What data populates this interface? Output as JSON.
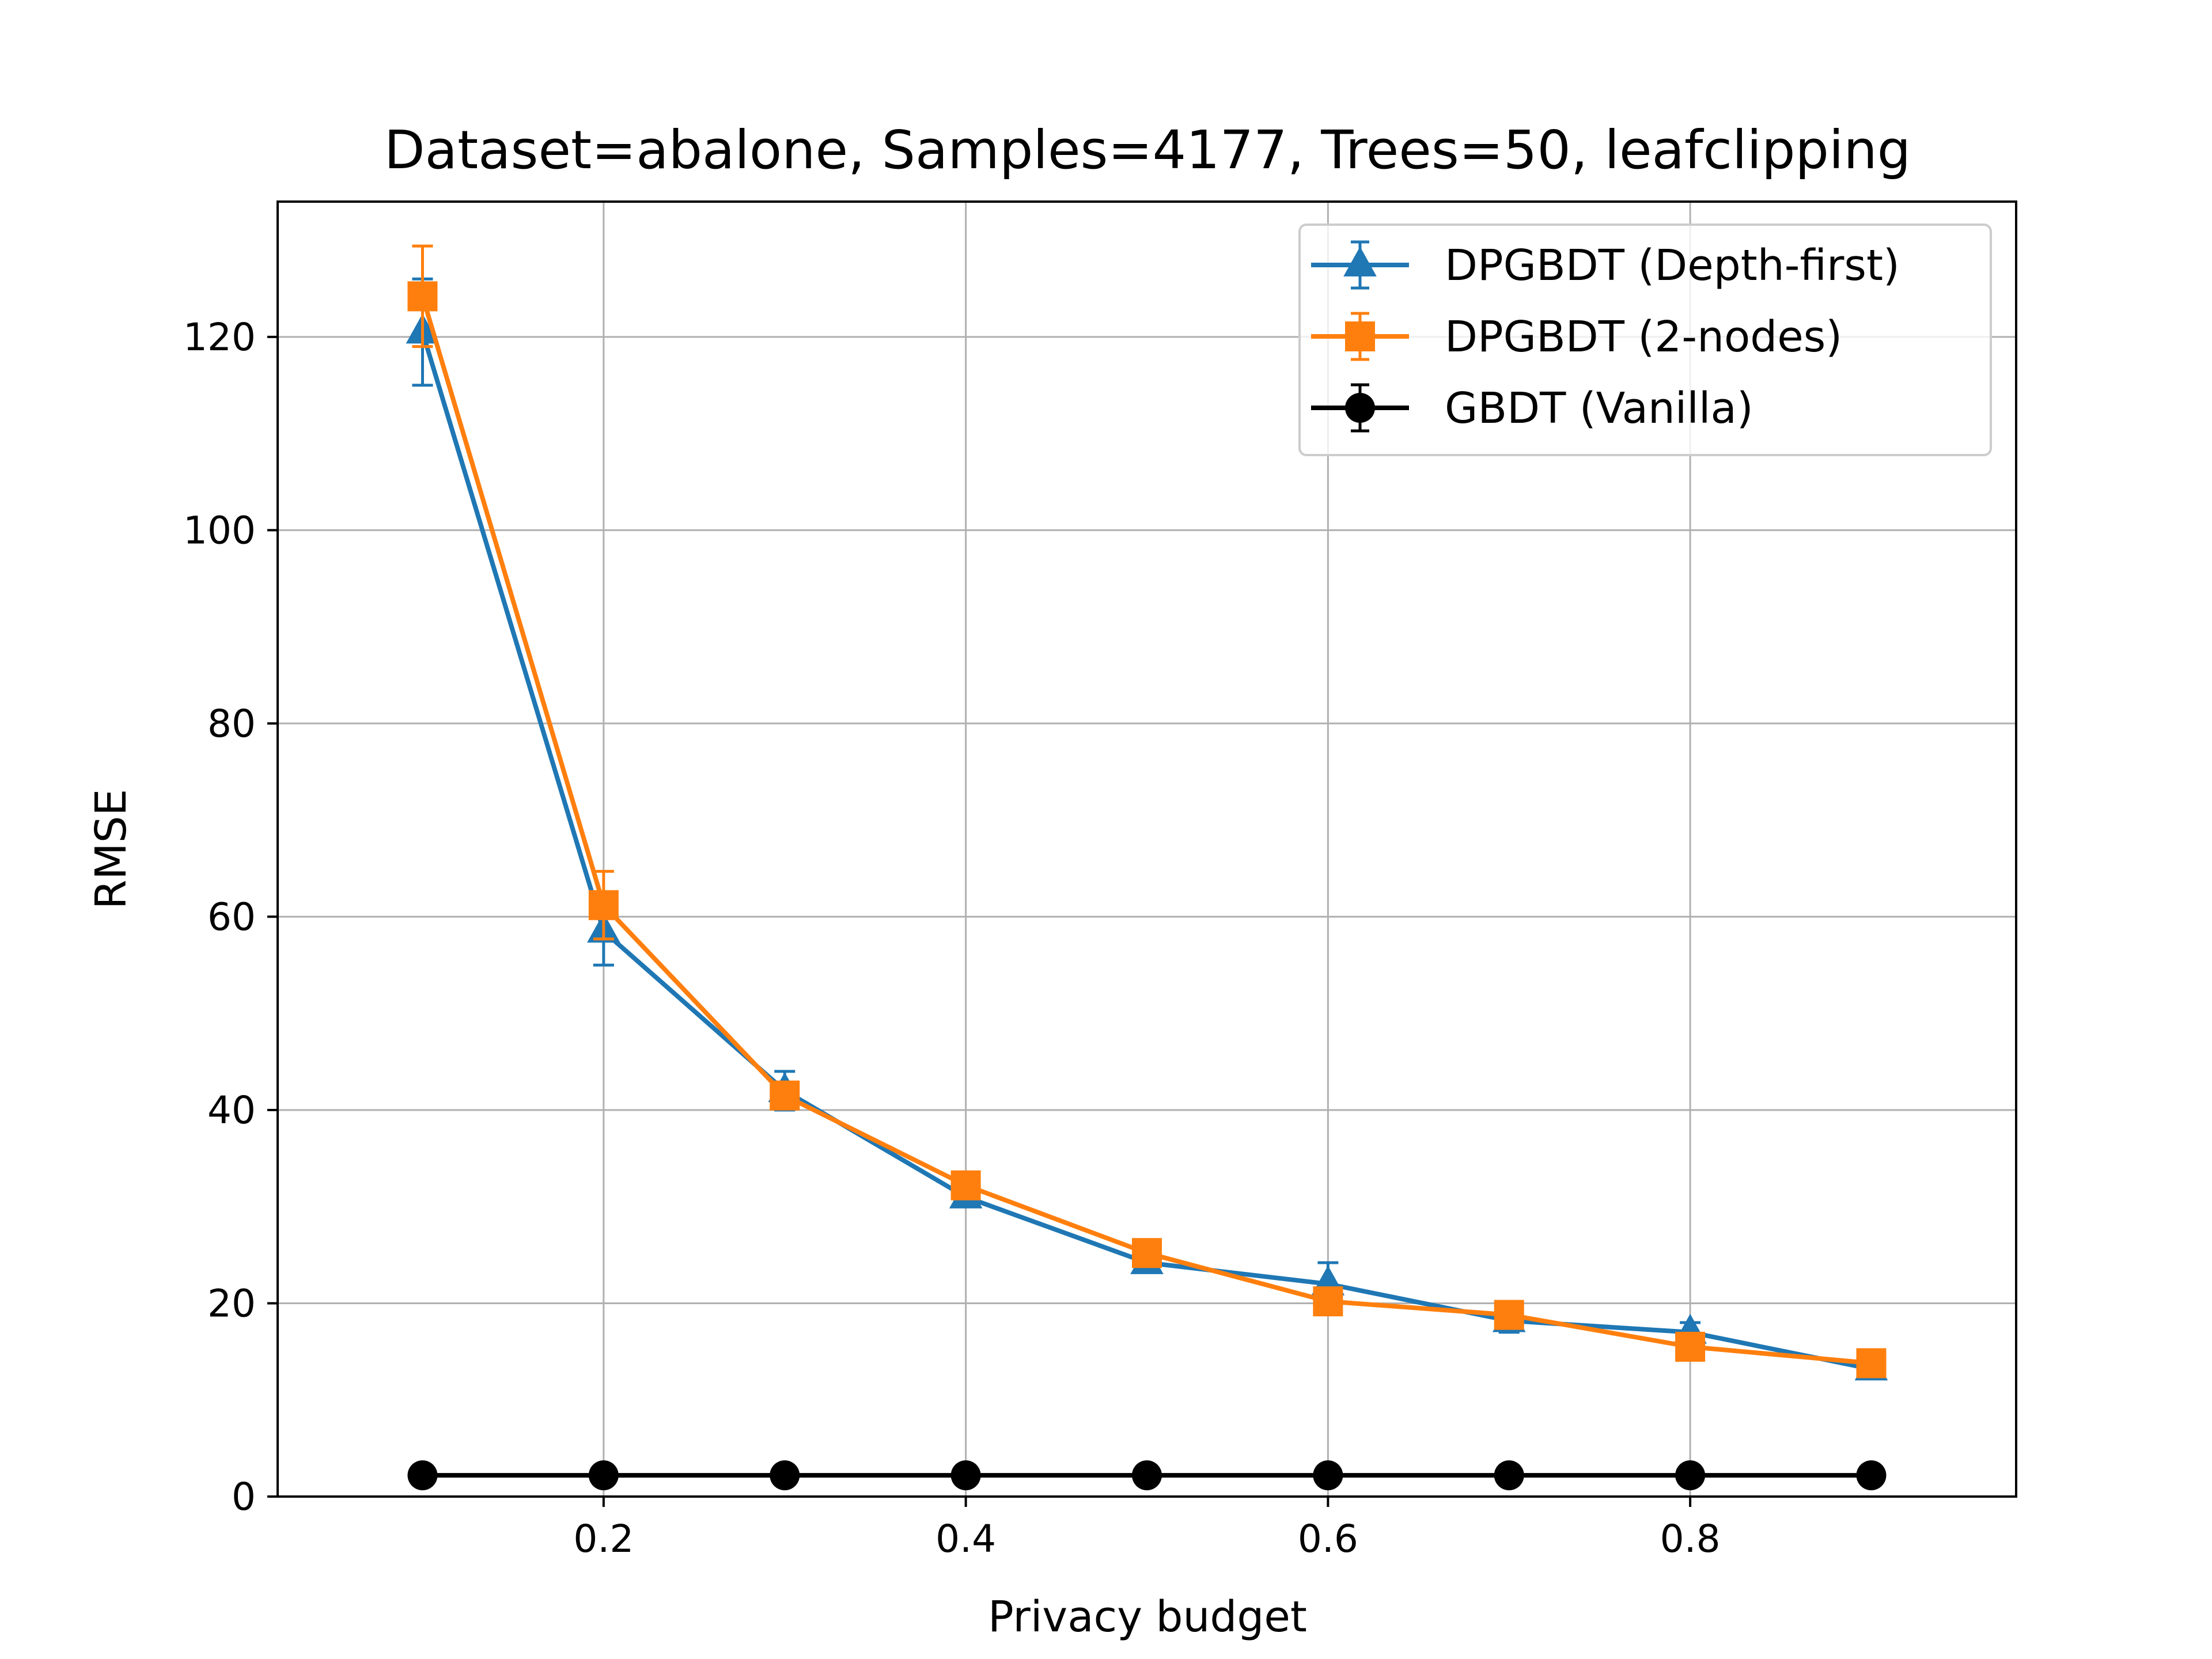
{
  "chart_data": {
    "type": "line",
    "title": "Dataset=abalone, Samples=4177, Trees=50, leafclipping",
    "xlabel": "Privacy budget",
    "ylabel": "RMSE",
    "xlim": [
      0.02,
      0.98
    ],
    "ylim": [
      0,
      134
    ],
    "xticks": [
      0.2,
      0.4,
      0.6,
      0.8
    ],
    "xtick_labels": [
      "0.2",
      "0.4",
      "0.6",
      "0.8"
    ],
    "yticks": [
      0,
      20,
      40,
      60,
      80,
      100,
      120
    ],
    "ytick_labels": [
      "0",
      "20",
      "40",
      "60",
      "80",
      "100",
      "120"
    ],
    "grid": true,
    "legend_position": "top-right",
    "x": [
      0.1,
      0.2,
      0.3,
      0.4,
      0.5,
      0.6,
      0.7,
      0.8,
      0.9
    ],
    "series": [
      {
        "name": "DPGBDT (Depth-first)",
        "color": "#1f77b4",
        "marker": "triangle",
        "values": [
          120.5,
          58.5,
          42.0,
          31.0,
          24.2,
          22.0,
          18.2,
          17.0,
          13.2
        ],
        "errors": [
          5.5,
          3.5,
          2.0,
          1.0,
          1.0,
          2.2,
          1.2,
          1.0,
          0.8
        ]
      },
      {
        "name": "DPGBDT (2-nodes)",
        "color": "#ff7f0e",
        "marker": "square",
        "values": [
          124.2,
          61.2,
          41.5,
          32.2,
          25.2,
          20.2,
          18.8,
          15.5,
          13.8
        ],
        "errors": [
          5.2,
          3.5,
          1.0,
          1.0,
          0.8,
          0.8,
          0.8,
          0.8,
          0.8
        ]
      },
      {
        "name": "GBDT (Vanilla)",
        "color": "#000000",
        "marker": "circle",
        "values": [
          2.2,
          2.2,
          2.2,
          2.2,
          2.2,
          2.2,
          2.2,
          2.2,
          2.2
        ],
        "errors": [
          0.05,
          0.05,
          0.05,
          0.05,
          0.05,
          0.05,
          0.05,
          0.05,
          0.05
        ]
      }
    ]
  }
}
